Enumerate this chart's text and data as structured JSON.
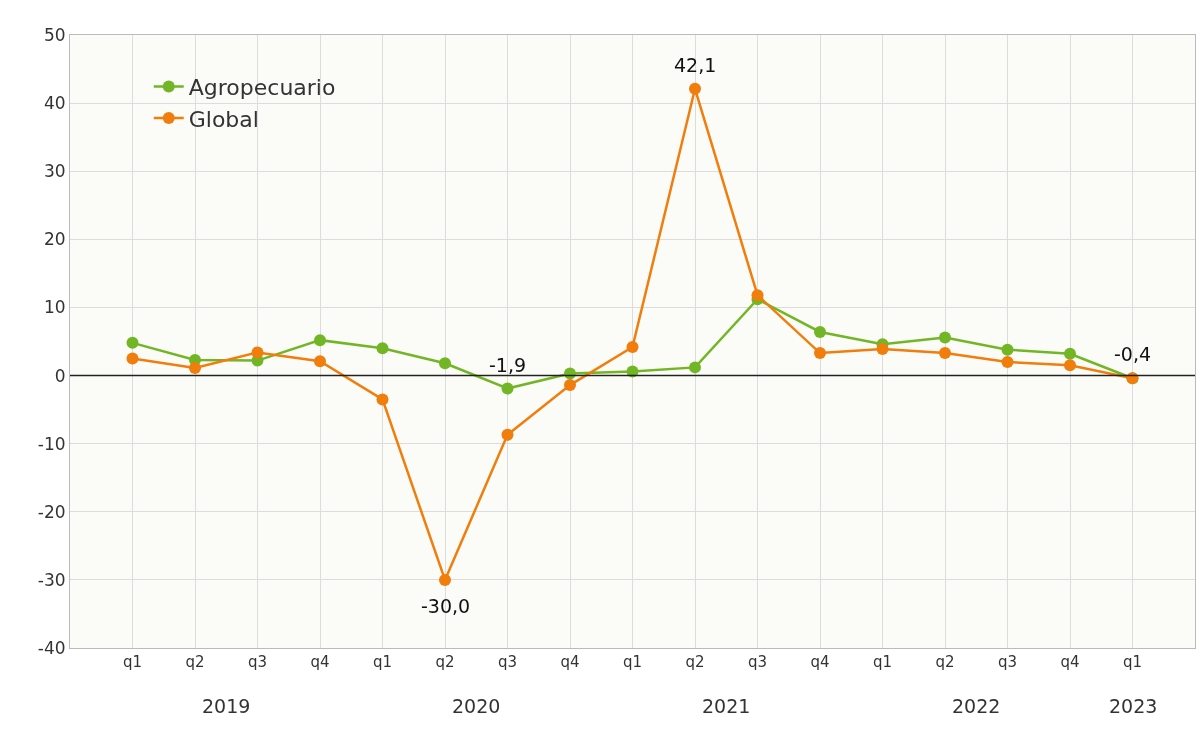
{
  "chart_data": {
    "type": "line",
    "categories": [
      "q1",
      "q2",
      "q3",
      "q4",
      "q1",
      "q2",
      "q3",
      "q4",
      "q1",
      "q2",
      "q3",
      "q4",
      "q1",
      "q2",
      "q3",
      "q4",
      "q1"
    ],
    "series": [
      {
        "name": "Agropecuario",
        "color": "#72b626",
        "values": [
          4.8,
          2.3,
          2.2,
          5.2,
          4.0,
          1.8,
          -1.9,
          0.3,
          0.6,
          1.2,
          11.2,
          6.4,
          4.6,
          5.6,
          3.8,
          3.2,
          -0.4
        ],
        "value_labels": [
          null,
          null,
          null,
          null,
          null,
          null,
          "-1,9",
          null,
          null,
          null,
          null,
          null,
          null,
          null,
          null,
          null,
          null
        ]
      },
      {
        "name": "Global",
        "color": "#f07d0c",
        "values": [
          2.5,
          1.1,
          3.4,
          2.1,
          -3.5,
          -30.0,
          -8.7,
          -1.4,
          4.2,
          42.1,
          11.8,
          3.3,
          3.9,
          3.3,
          2.0,
          1.5,
          -0.4
        ],
        "value_labels": [
          null,
          null,
          null,
          null,
          null,
          "-30,0",
          null,
          null,
          null,
          "42,1",
          null,
          null,
          null,
          null,
          null,
          null,
          "-0,4"
        ]
      }
    ],
    "ylim": [
      -40,
      50
    ],
    "yticks": [
      -40,
      -30,
      -20,
      -10,
      0,
      10,
      20,
      30,
      40,
      50
    ],
    "ref_lines": [
      {
        "axis": "y",
        "value": 0,
        "color": "#222222"
      }
    ],
    "annotations": [
      "2019",
      "2020",
      "2021",
      "2022",
      "2023"
    ],
    "grid": true,
    "legend": "top left",
    "marker": "circle",
    "line_style": "solid"
  }
}
